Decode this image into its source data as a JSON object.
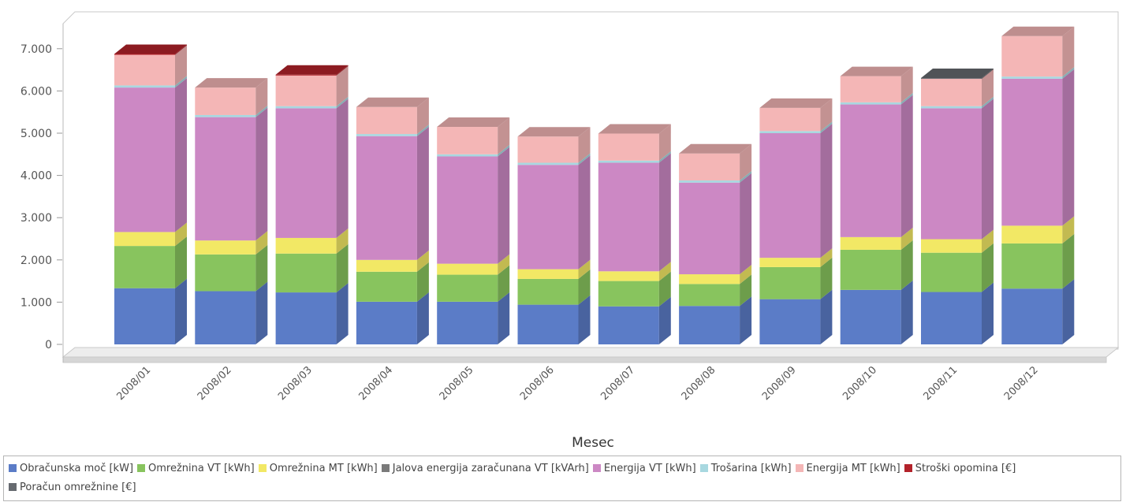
{
  "chart_data": {
    "type": "bar",
    "stacked": true,
    "style": "3d",
    "title": "",
    "xlabel": "Mesec",
    "ylabel": "",
    "ylim": [
      0,
      7000
    ],
    "yticks": [
      0,
      1000,
      2000,
      3000,
      4000,
      5000,
      6000,
      7000
    ],
    "ytick_labels": [
      "0",
      "1.000",
      "2.000",
      "3.000",
      "4.000",
      "5.000",
      "6.000",
      "7.000"
    ],
    "grid": false,
    "legend_position": "bottom",
    "categories": [
      "2008/01",
      "2008/02",
      "2008/03",
      "2008/04",
      "2008/05",
      "2008/06",
      "2008/07",
      "2008/08",
      "2008/09",
      "2008/10",
      "2008/11",
      "2008/12"
    ],
    "series": [
      {
        "name": "Obračunska moč [kW]",
        "color": "#5b7cc7",
        "values": [
          1330,
          1260,
          1230,
          1010,
          1010,
          940,
          900,
          910,
          1070,
          1290,
          1240,
          1320
        ]
      },
      {
        "name": "Omrežnina VT [kWh]",
        "color": "#88c45e",
        "values": [
          1000,
          870,
          920,
          710,
          640,
          610,
          600,
          520,
          760,
          950,
          930,
          1070
        ]
      },
      {
        "name": "Omrežnina MT [kWh]",
        "color": "#f2e865",
        "values": [
          330,
          330,
          370,
          280,
          260,
          230,
          230,
          230,
          220,
          300,
          320,
          420
        ]
      },
      {
        "name": "Jalova energija zaračunana VT [kVArh]",
        "color": "#7a7a7a",
        "values": [
          0,
          0,
          0,
          0,
          0,
          0,
          0,
          0,
          0,
          0,
          0,
          0
        ]
      },
      {
        "name": "Energija VT [kWh]",
        "color": "#cc88c4",
        "values": [
          3420,
          2920,
          3070,
          2930,
          2540,
          2470,
          2570,
          2170,
          2950,
          3140,
          3100,
          3480
        ]
      },
      {
        "name": "Trošarina [kWh]",
        "color": "#a8d8e0",
        "values": [
          50,
          50,
          50,
          50,
          50,
          50,
          50,
          50,
          50,
          50,
          50,
          50
        ]
      },
      {
        "name": "Energija MT [kWh]",
        "color": "#f4b6b6",
        "values": [
          740,
          650,
          740,
          640,
          650,
          620,
          640,
          640,
          550,
          620,
          660,
          960
        ]
      },
      {
        "name": "Stroški opomina [€]",
        "color": "#b3222a",
        "values": [
          5,
          0,
          5,
          0,
          0,
          0,
          0,
          0,
          0,
          0,
          0,
          0
        ]
      },
      {
        "name": "Poračun omrežnine [€]",
        "color": "#666a70",
        "values": [
          0,
          0,
          0,
          0,
          0,
          0,
          0,
          0,
          0,
          0,
          5,
          0
        ]
      }
    ]
  }
}
